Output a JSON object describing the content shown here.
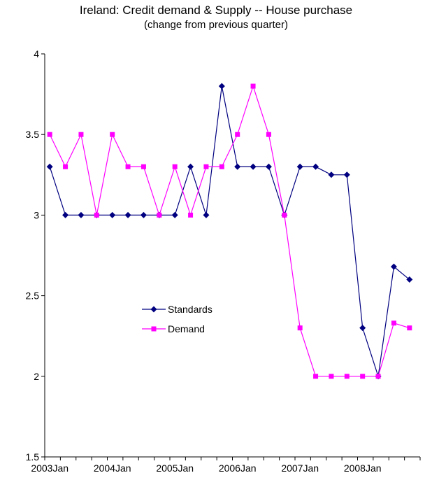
{
  "chart_data": {
    "type": "line",
    "title": "Ireland: Credit demand & Supply -- House purchase",
    "subtitle": "(change from previous quarter)",
    "xlabel": "",
    "ylabel": "",
    "ylim": [
      1.5,
      4
    ],
    "yticks": [
      "1.5",
      "2",
      "2.5",
      "3",
      "3.5",
      "4"
    ],
    "x_tick_labels": [
      "2003Jan",
      "2004Jan",
      "2005Jan",
      "2006Jan",
      "2007Jan",
      "2008Jan"
    ],
    "x": [
      "2003Jan",
      "2003Apr",
      "2003Jul",
      "2003Oct",
      "2004Jan",
      "2004Apr",
      "2004Jul",
      "2004Oct",
      "2005Jan",
      "2005Apr",
      "2005Jul",
      "2005Oct",
      "2006Jan",
      "2006Apr",
      "2006Jul",
      "2006Oct",
      "2007Jan",
      "2007Apr",
      "2007Jul",
      "2007Oct",
      "2008Jan",
      "2008Apr",
      "2008Jul",
      "2008Oct"
    ],
    "series": [
      {
        "name": "Standards",
        "color": "#000080",
        "marker": "diamond",
        "values": [
          3.3,
          3.0,
          3.0,
          3.0,
          3.0,
          3.0,
          3.0,
          3.0,
          3.0,
          3.3,
          3.0,
          3.8,
          3.3,
          3.3,
          3.3,
          3.0,
          3.3,
          3.3,
          3.25,
          3.25,
          2.3,
          2.0,
          2.68,
          2.6
        ]
      },
      {
        "name": "Demand",
        "color": "#ff00ff",
        "marker": "square",
        "values": [
          3.5,
          3.3,
          3.5,
          3.0,
          3.5,
          3.3,
          3.3,
          3.0,
          3.3,
          3.0,
          3.3,
          3.3,
          3.5,
          3.8,
          3.5,
          3.0,
          2.3,
          2.0,
          2.0,
          2.0,
          2.0,
          2.0,
          2.33,
          2.3
        ]
      }
    ],
    "legend_position": "center-left"
  }
}
